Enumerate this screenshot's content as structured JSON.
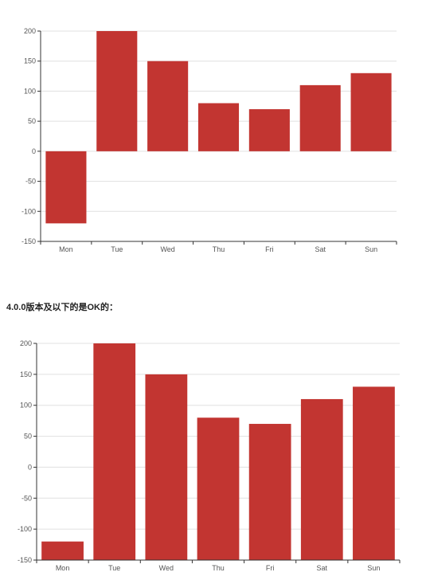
{
  "caption": "4.0.0版本及以下的是OK的：",
  "colors": {
    "bar": "#c23531",
    "grid": "#e0e0e0",
    "axis": "#333333",
    "label": "#555555"
  },
  "chart_data": [
    {
      "type": "bar",
      "title": "",
      "xlabel": "",
      "ylabel": "",
      "categories": [
        "Mon",
        "Tue",
        "Wed",
        "Thu",
        "Fri",
        "Sat",
        "Sun"
      ],
      "values": [
        -120,
        200,
        150,
        80,
        70,
        110,
        130
      ],
      "ylim": [
        -150,
        200
      ],
      "yticks": [
        200,
        150,
        100,
        50,
        0,
        -50,
        -100,
        -150
      ],
      "grid": true,
      "bar_baseline": 0
    },
    {
      "type": "bar",
      "title": "",
      "xlabel": "",
      "ylabel": "",
      "categories": [
        "Mon",
        "Tue",
        "Wed",
        "Thu",
        "Fri",
        "Sat",
        "Sun"
      ],
      "values": [
        -120,
        200,
        150,
        80,
        70,
        110,
        130
      ],
      "ylim": [
        -150,
        200
      ],
      "yticks": [
        200,
        150,
        100,
        50,
        0,
        -50,
        -100,
        -150
      ],
      "grid": true,
      "bar_baseline": -150
    }
  ]
}
